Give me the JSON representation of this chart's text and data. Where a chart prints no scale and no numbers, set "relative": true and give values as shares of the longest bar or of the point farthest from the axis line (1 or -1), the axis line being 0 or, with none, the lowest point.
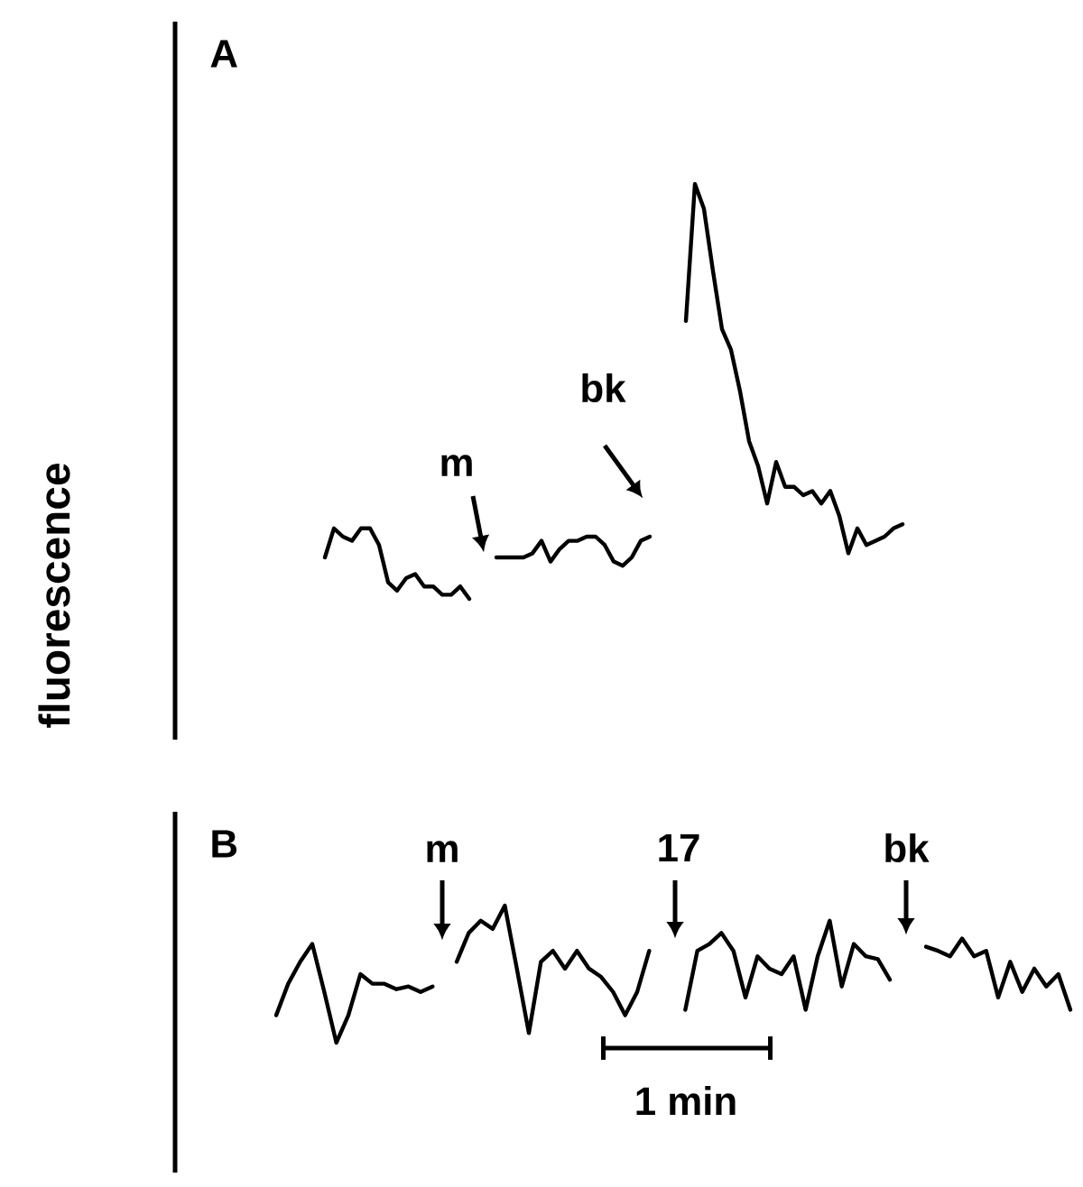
{
  "chart_data": [
    {
      "type": "line",
      "relative": true,
      "title": "A",
      "ylabel": "fluorescence",
      "annotations": [
        "m",
        "bk"
      ],
      "categories": [
        null,
        null,
        null,
        null,
        null,
        null,
        null,
        null,
        null,
        null,
        null,
        null,
        null,
        null,
        null,
        null,
        null,
        null,
        null,
        null,
        null,
        null,
        null,
        null,
        null,
        null,
        null,
        null,
        null,
        null,
        null,
        null,
        null,
        null,
        null,
        null,
        null,
        null,
        null,
        null,
        null,
        null,
        null,
        null,
        null,
        null,
        null,
        null,
        null,
        null,
        null,
        null,
        null,
        null,
        null,
        null,
        null,
        null,
        null,
        null,
        null,
        null,
        null,
        null,
        null
      ],
      "series": [
        {
          "color": "#000000",
          "values": [
            0.1,
            0.17,
            0.15,
            0.14,
            0.17,
            0.17,
            0.13,
            0.04,
            0.02,
            0.05,
            0.06,
            0.03,
            0.03,
            0.01,
            0.01,
            0.03,
            0.0,
            null,
            null,
            null,
            null,
            null,
            null,
            null,
            null,
            null,
            null,
            null,
            null,
            null,
            null,
            null,
            null,
            null,
            null,
            null,
            null,
            null,
            null,
            null,
            null,
            null,
            null,
            null,
            null,
            null,
            null,
            null,
            null,
            null,
            null,
            null,
            null,
            null,
            null,
            null,
            null,
            null,
            null,
            null,
            null,
            null,
            null,
            null,
            null
          ]
        },
        {
          "color": "#000000",
          "values": [
            null,
            null,
            null,
            null,
            null,
            null,
            null,
            null,
            null,
            null,
            null,
            null,
            null,
            null,
            null,
            null,
            null,
            null,
            null,
            0.1,
            0.1,
            0.1,
            0.1,
            0.11,
            0.14,
            0.09,
            0.12,
            0.14,
            0.14,
            0.15,
            0.15,
            0.13,
            0.09,
            0.08,
            0.1,
            0.14,
            0.15,
            null,
            null,
            null,
            null,
            null,
            null,
            null,
            null,
            null,
            null,
            null,
            null,
            null,
            null,
            null,
            null,
            null,
            null,
            null,
            null,
            null,
            null,
            null,
            null,
            null,
            null,
            null,
            null
          ]
        },
        {
          "color": "#000000",
          "values": [
            null,
            null,
            null,
            null,
            null,
            null,
            null,
            null,
            null,
            null,
            null,
            null,
            null,
            null,
            null,
            null,
            null,
            null,
            null,
            null,
            null,
            null,
            null,
            null,
            null,
            null,
            null,
            null,
            null,
            null,
            null,
            null,
            null,
            null,
            null,
            null,
            null,
            null,
            null,
            null,
            0.67,
            1.0,
            0.94,
            0.79,
            0.65,
            0.6,
            0.5,
            0.38,
            0.32,
            0.23,
            0.33,
            0.27,
            0.27,
            0.25,
            0.26,
            0.23,
            0.26,
            0.2,
            0.11,
            0.17,
            0.13,
            0.14,
            0.15,
            0.17,
            0.18
          ]
        }
      ]
    },
    {
      "type": "line",
      "relative": true,
      "title": "B",
      "annotations": [
        "m",
        "17",
        "bk",
        "1 min"
      ],
      "categories": [
        null,
        null,
        null,
        null,
        null,
        null,
        null,
        null,
        null,
        null,
        null,
        null,
        null,
        null,
        null,
        null,
        null,
        null,
        null,
        null,
        null,
        null,
        null,
        null,
        null,
        null,
        null,
        null,
        null,
        null,
        null,
        null,
        null,
        null,
        null,
        null,
        null,
        null,
        null,
        null,
        null,
        null,
        null,
        null,
        null,
        null,
        null,
        null,
        null,
        null,
        null,
        null,
        null,
        null,
        null,
        null,
        null,
        null,
        null,
        null,
        null,
        null,
        null,
        null,
        null,
        null,
        null
      ],
      "series": [
        {
          "color": "#000000",
          "values": [
            0.2,
            0.43,
            0.59,
            0.72,
            0.37,
            0.0,
            0.2,
            0.5,
            0.43,
            0.43,
            0.39,
            0.41,
            0.37,
            0.41,
            null,
            null,
            null,
            null,
            null,
            null,
            null,
            null,
            null,
            null,
            null,
            null,
            null,
            null,
            null,
            null,
            null,
            null,
            null,
            null,
            null,
            null,
            null,
            null,
            null,
            null,
            null,
            null,
            null,
            null,
            null,
            null,
            null,
            null,
            null,
            null,
            null,
            null,
            null,
            null,
            null,
            null,
            null,
            null,
            null,
            null,
            null,
            null,
            null,
            null,
            null,
            null,
            null
          ]
        },
        {
          "color": "#000000",
          "values": [
            null,
            null,
            null,
            null,
            null,
            null,
            null,
            null,
            null,
            null,
            null,
            null,
            null,
            null,
            null,
            0.59,
            0.8,
            0.89,
            0.83,
            1.0,
            0.54,
            0.07,
            0.59,
            0.67,
            0.54,
            0.67,
            0.54,
            0.48,
            0.37,
            0.2,
            0.37,
            0.67,
            null,
            null,
            null,
            null,
            null,
            null,
            null,
            null,
            null,
            null,
            null,
            null,
            null,
            null,
            null,
            null,
            null,
            null,
            null,
            null,
            null,
            null,
            null,
            null,
            null,
            null,
            null,
            null,
            null,
            null,
            null,
            null,
            null,
            null,
            null
          ]
        },
        {
          "color": "#000000",
          "values": [
            null,
            null,
            null,
            null,
            null,
            null,
            null,
            null,
            null,
            null,
            null,
            null,
            null,
            null,
            null,
            null,
            null,
            null,
            null,
            null,
            null,
            null,
            null,
            null,
            null,
            null,
            null,
            null,
            null,
            null,
            null,
            null,
            null,
            null,
            0.24,
            0.67,
            0.72,
            0.8,
            0.67,
            0.33,
            0.63,
            0.54,
            0.5,
            0.63,
            0.24,
            0.63,
            0.89,
            0.41,
            0.72,
            0.63,
            0.61,
            0.46,
            null,
            null,
            null,
            null,
            null,
            null,
            null,
            null,
            null,
            null,
            null,
            null,
            null,
            null,
            null
          ]
        },
        {
          "color": "#000000",
          "values": [
            null,
            null,
            null,
            null,
            null,
            null,
            null,
            null,
            null,
            null,
            null,
            null,
            null,
            null,
            null,
            null,
            null,
            null,
            null,
            null,
            null,
            null,
            null,
            null,
            null,
            null,
            null,
            null,
            null,
            null,
            null,
            null,
            null,
            null,
            null,
            null,
            null,
            null,
            null,
            null,
            null,
            null,
            null,
            null,
            null,
            null,
            null,
            null,
            null,
            null,
            null,
            null,
            null,
            null,
            0.7,
            0.67,
            0.63,
            0.76,
            0.63,
            0.67,
            0.33,
            0.59,
            0.37,
            0.54,
            0.41,
            0.5,
            0.24
          ]
        }
      ]
    }
  ]
}
